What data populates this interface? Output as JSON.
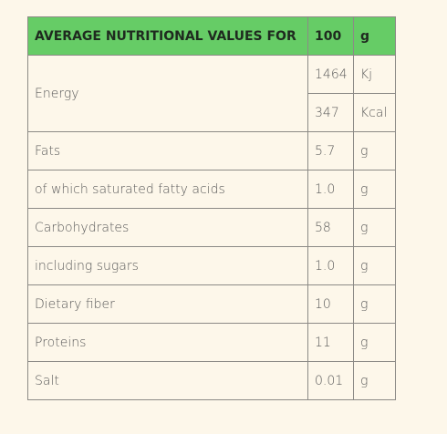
{
  "table": {
    "header": [
      "AVERAGE NUTRITIONAL VALUES FOR",
      "100",
      "g"
    ],
    "rows": [
      {
        "label": "Energy",
        "entries": [
          {
            "value": "1464",
            "unit": "Kj"
          },
          {
            "value": "347",
            "unit": "Kcal"
          }
        ]
      },
      {
        "label": "Fats",
        "entries": [
          {
            "value": "5.7",
            "unit": "g"
          }
        ]
      },
      {
        "label": "of which saturated fatty acids",
        "entries": [
          {
            "value": "1.0",
            "unit": "g"
          }
        ]
      },
      {
        "label": "Carbohydrates",
        "entries": [
          {
            "value": "58",
            "unit": "g"
          }
        ]
      },
      {
        "label": "including sugars",
        "entries": [
          {
            "value": "1.0",
            "unit": "g"
          }
        ]
      },
      {
        "label": "Dietary fiber",
        "entries": [
          {
            "value": "10",
            "unit": "g"
          }
        ]
      },
      {
        "label": "Proteins",
        "entries": [
          {
            "value": "11",
            "unit": "g"
          }
        ]
      },
      {
        "label": "Salt",
        "entries": [
          {
            "value": "0.01",
            "unit": "g"
          }
        ]
      }
    ]
  }
}
